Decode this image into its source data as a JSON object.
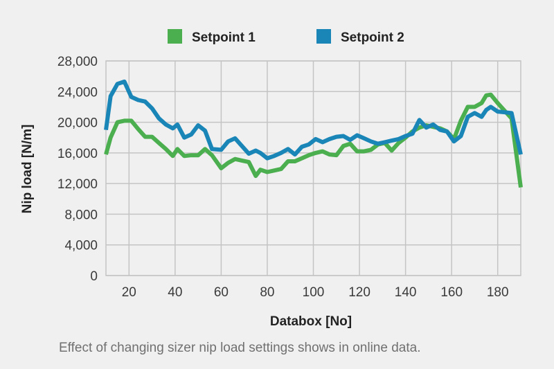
{
  "chart_data": {
    "type": "line",
    "title": "",
    "xlabel": "Databox [No]",
    "ylabel": "Nip load [N/m]",
    "xlim": [
      10,
      190
    ],
    "ylim": [
      0,
      28000
    ],
    "xticks": [
      20,
      40,
      60,
      80,
      100,
      120,
      140,
      160,
      180
    ],
    "yticks": [
      0,
      4000,
      8000,
      12000,
      16000,
      20000,
      24000,
      28000
    ],
    "xtick_labels": [
      "20",
      "40",
      "60",
      "80",
      "100",
      "120",
      "140",
      "160",
      "180"
    ],
    "ytick_labels": [
      "0",
      "4,000",
      "8,000",
      "12,000",
      "16,000",
      "20,000",
      "24,000",
      "28,000"
    ],
    "grid": true,
    "legend_position": "top",
    "caption": "Effect of changing sizer nip load settings shows in online data.",
    "series": [
      {
        "name": "Setpoint 1",
        "color": "#4caf4f",
        "x": [
          10,
          12,
          15,
          18,
          21,
          24,
          27,
          30,
          33,
          36,
          39,
          41,
          44,
          47,
          50,
          53,
          56,
          60,
          63,
          66,
          69,
          72,
          75,
          77,
          80,
          83,
          86,
          89,
          92,
          95,
          98,
          101,
          104,
          107,
          110,
          113,
          116,
          119,
          122,
          125,
          128,
          131,
          134,
          137,
          140,
          143,
          146,
          149,
          152,
          155,
          158,
          161,
          164,
          167,
          170,
          173,
          175,
          177,
          180,
          183,
          186,
          190
        ],
        "y": [
          15800,
          18000,
          20000,
          20200,
          20200,
          19100,
          18100,
          18100,
          17300,
          16500,
          15600,
          16500,
          15600,
          15700,
          15700,
          16500,
          15700,
          14000,
          14700,
          15200,
          15000,
          14800,
          13000,
          13800,
          13500,
          13700,
          13900,
          14900,
          14900,
          15300,
          15700,
          16000,
          16200,
          15800,
          15700,
          16900,
          17200,
          16200,
          16200,
          16400,
          17100,
          17300,
          16300,
          17300,
          18000,
          18800,
          19300,
          19600,
          19400,
          19200,
          18800,
          17800,
          20200,
          22000,
          22000,
          22500,
          23500,
          23600,
          22500,
          21500,
          20500,
          11500
        ]
      },
      {
        "name": "Setpoint 2",
        "color": "#1a86b8",
        "x": [
          10,
          12,
          15,
          18,
          21,
          24,
          27,
          30,
          33,
          36,
          39,
          41,
          44,
          47,
          50,
          53,
          56,
          60,
          63,
          66,
          69,
          72,
          75,
          77,
          80,
          83,
          86,
          89,
          92,
          95,
          98,
          101,
          104,
          107,
          110,
          113,
          116,
          119,
          122,
          125,
          128,
          131,
          134,
          137,
          140,
          143,
          146,
          149,
          152,
          155,
          158,
          161,
          164,
          167,
          170,
          173,
          175,
          177,
          180,
          183,
          186,
          190
        ],
        "y": [
          19000,
          23400,
          25000,
          25300,
          23300,
          22900,
          22700,
          21800,
          20500,
          19700,
          19200,
          19700,
          18000,
          18400,
          19600,
          18900,
          16500,
          16400,
          17500,
          17900,
          16900,
          15900,
          16300,
          16000,
          15300,
          15600,
          16000,
          16500,
          15800,
          16800,
          17100,
          17800,
          17400,
          17800,
          18100,
          18200,
          17700,
          18300,
          17900,
          17500,
          17200,
          17400,
          17600,
          17800,
          18200,
          18500,
          20300,
          19300,
          19700,
          19000,
          18800,
          17500,
          18200,
          20700,
          21200,
          20700,
          21600,
          22000,
          21400,
          21300,
          21200,
          15800
        ]
      }
    ]
  }
}
